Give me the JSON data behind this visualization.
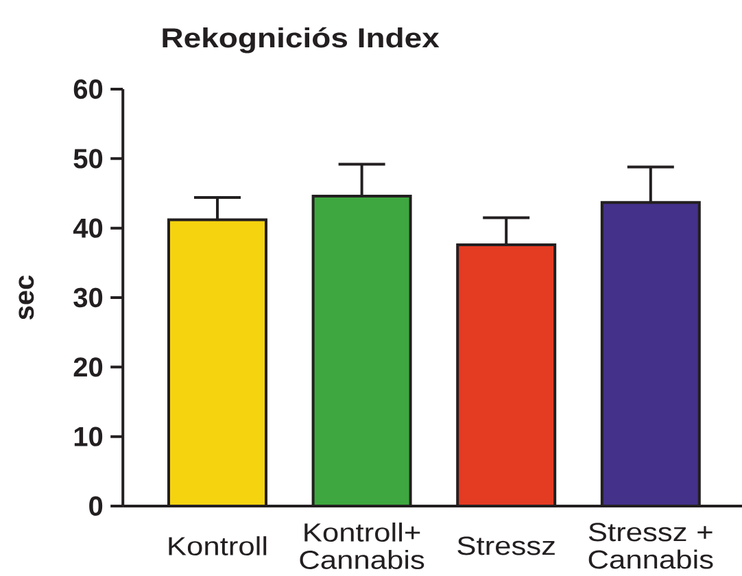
{
  "chart_data": {
    "type": "bar",
    "title": "Rekogniciós Index",
    "ylabel": "sec",
    "categories": [
      "Kontroll",
      "Kontroll+ Cannabis",
      "Stressz",
      "Stressz + Cannabis"
    ],
    "values": [
      41.2,
      44.6,
      37.6,
      43.7
    ],
    "errors": [
      [
        41.2,
        44.4
      ],
      [
        44.6,
        49.2
      ],
      [
        37.6,
        41.5
      ],
      [
        43.7,
        48.8
      ]
    ],
    "colors": [
      "#f6d30f",
      "#3ea73f",
      "#e43b23",
      "#43318a"
    ],
    "ylim": [
      0,
      60
    ],
    "yticks": [
      0,
      10,
      20,
      30,
      40,
      50,
      60
    ]
  }
}
